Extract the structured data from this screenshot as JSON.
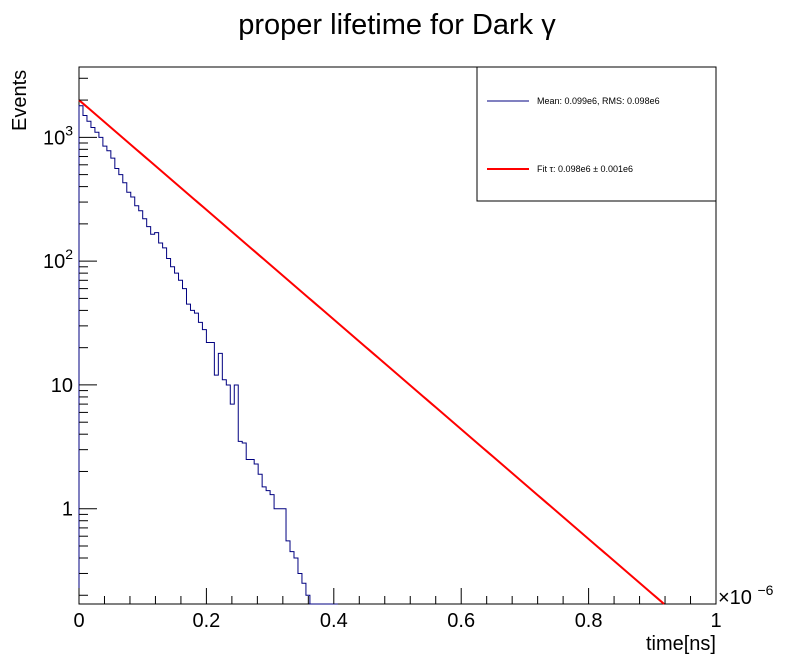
{
  "chart_data": {
    "type": "histogram",
    "title": "proper lifetime for Dark γ",
    "xlabel": "time[ns]",
    "ylabel": "Events",
    "x_multiplier": "×10",
    "x_multiplier_exp": "−6",
    "xlim": [
      0,
      1
    ],
    "ylim": [
      0.17,
      3700
    ],
    "y_scale": "log",
    "grid": false,
    "legend_position": "top-right",
    "x_ticks": [
      "0",
      "0.2",
      "0.4",
      "0.6",
      "0.8",
      "1"
    ],
    "y_ticks": [
      {
        "value": 1,
        "base": "1",
        "exp": ""
      },
      {
        "value": 10,
        "base": "10",
        "exp": ""
      },
      {
        "value": 100,
        "base": "10",
        "exp": "2"
      },
      {
        "value": 1000,
        "base": "10",
        "exp": "3"
      }
    ],
    "bin_width": 0.00625,
    "histogram_values": [
      1800,
      1500,
      1350,
      1200,
      1100,
      1000,
      850,
      780,
      680,
      560,
      500,
      430,
      360,
      330,
      280,
      255,
      220,
      190,
      165,
      170,
      140,
      128,
      105,
      90,
      80,
      70,
      60,
      45,
      40,
      38,
      32,
      28,
      22,
      22,
      12,
      18,
      11,
      10,
      7,
      10,
      3.5,
      3.4,
      2.5,
      2.5,
      2.3,
      1.9,
      1.5,
      1.4,
      1.3,
      1.0,
      1.0,
      1.0,
      0.55,
      0.45,
      0.4,
      0.3,
      0.25,
      0.2,
      0.15,
      0.12,
      0.1,
      0.09,
      0.08,
      0.07,
      0.06
    ],
    "histogram_color": "#000080",
    "series": [
      {
        "name": "Mean: 0.099e6, RMS: 0.098e6",
        "kind": "histogram",
        "color": "#000080"
      },
      {
        "name": "Fit τ: 0.098e6 ± 0.001e6",
        "kind": "exponential_fit",
        "color": "#ff0000",
        "amplitude": 2000,
        "tau": 0.098
      }
    ]
  }
}
